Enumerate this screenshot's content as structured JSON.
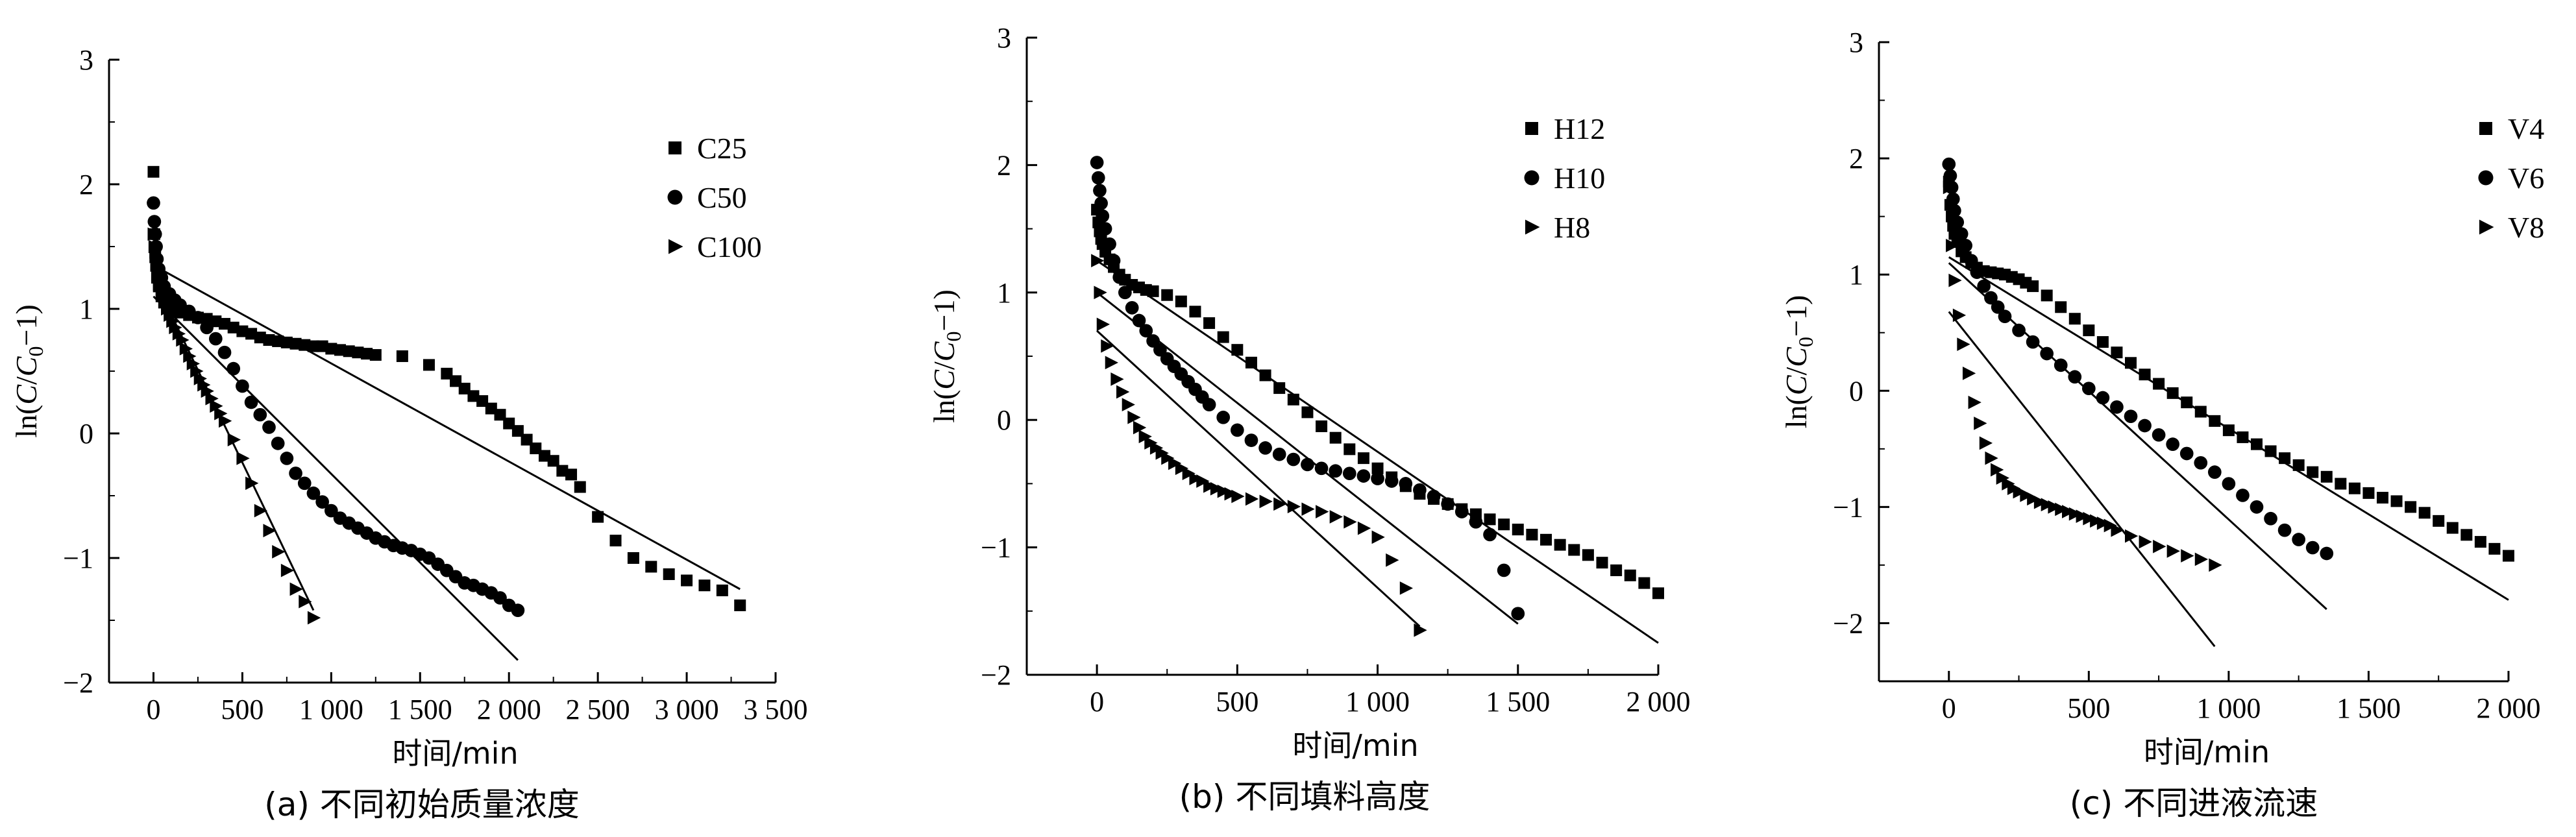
{
  "chart_data": [
    {
      "type": "scatter",
      "panel": "a",
      "caption": "(a) 不同初始质量浓度",
      "xlabel": "时间/min",
      "ylabel": "ln(C/C0−1)",
      "xlim": [
        -250,
        3500
      ],
      "ylim": [
        -2,
        3
      ],
      "xticks": [
        0,
        500,
        1000,
        1500,
        2000,
        2500,
        3000,
        3500
      ],
      "xtick_labels": [
        "0",
        "500",
        "1 000",
        "1 500",
        "2 000",
        "2 500",
        "3 000",
        "3 500"
      ],
      "yticks": [
        -2,
        -1,
        0,
        1,
        2,
        3
      ],
      "ytick_labels": [
        "−2",
        "−1",
        "0",
        "1",
        "2",
        "3"
      ],
      "legend_position": "top-right",
      "series": [
        {
          "name": "C25",
          "marker": "square",
          "x": [
            0,
            5,
            10,
            15,
            20,
            30,
            45,
            60,
            90,
            120,
            150,
            200,
            250,
            300,
            350,
            400,
            450,
            500,
            550,
            600,
            650,
            700,
            750,
            800,
            850,
            900,
            950,
            1000,
            1050,
            1100,
            1150,
            1200,
            1250,
            1400,
            1550,
            1650,
            1700,
            1750,
            1800,
            1850,
            1900,
            1950,
            2000,
            2050,
            2100,
            2150,
            2200,
            2250,
            2300,
            2350,
            2400,
            2500,
            2600,
            2700,
            2800,
            2900,
            3000,
            3100,
            3200,
            3300
          ],
          "y": [
            2.1,
            1.6,
            1.45,
            1.35,
            1.25,
            1.18,
            1.1,
            1.05,
            1.0,
            0.98,
            0.97,
            0.95,
            0.93,
            0.92,
            0.9,
            0.88,
            0.85,
            0.82,
            0.8,
            0.77,
            0.75,
            0.74,
            0.73,
            0.72,
            0.71,
            0.7,
            0.7,
            0.68,
            0.67,
            0.66,
            0.65,
            0.64,
            0.63,
            0.62,
            0.55,
            0.48,
            0.42,
            0.36,
            0.3,
            0.26,
            0.2,
            0.15,
            0.08,
            0.02,
            -0.05,
            -0.12,
            -0.18,
            -0.22,
            -0.3,
            -0.33,
            -0.43,
            -0.67,
            -0.86,
            -1.0,
            -1.07,
            -1.13,
            -1.18,
            -1.22,
            -1.26,
            -1.38
          ]
        },
        {
          "name": "C50",
          "marker": "circle",
          "x": [
            0,
            5,
            10,
            15,
            20,
            30,
            45,
            60,
            90,
            120,
            150,
            200,
            250,
            300,
            350,
            400,
            450,
            500,
            550,
            600,
            650,
            700,
            750,
            800,
            850,
            900,
            950,
            1000,
            1050,
            1100,
            1150,
            1200,
            1250,
            1300,
            1350,
            1400,
            1450,
            1500,
            1550,
            1600,
            1650,
            1700,
            1750,
            1800,
            1850,
            1900,
            1950,
            2000,
            2050
          ],
          "y": [
            1.85,
            1.7,
            1.6,
            1.5,
            1.4,
            1.32,
            1.25,
            1.18,
            1.12,
            1.07,
            1.03,
            0.98,
            0.93,
            0.85,
            0.76,
            0.65,
            0.52,
            0.38,
            0.25,
            0.15,
            0.05,
            -0.08,
            -0.2,
            -0.32,
            -0.4,
            -0.48,
            -0.55,
            -0.62,
            -0.68,
            -0.72,
            -0.76,
            -0.8,
            -0.84,
            -0.87,
            -0.9,
            -0.92,
            -0.94,
            -0.97,
            -1.0,
            -1.05,
            -1.1,
            -1.15,
            -1.2,
            -1.22,
            -1.25,
            -1.28,
            -1.32,
            -1.38,
            -1.42
          ]
        },
        {
          "name": "C100",
          "marker": "triangle",
          "x": [
            0,
            5,
            10,
            15,
            20,
            30,
            45,
            60,
            75,
            90,
            105,
            120,
            140,
            160,
            180,
            200,
            220,
            240,
            260,
            280,
            300,
            325,
            350,
            375,
            400,
            450,
            500,
            550,
            600,
            650,
            700,
            750,
            800,
            850,
            900
          ],
          "y": [
            1.6,
            1.5,
            1.42,
            1.35,
            1.28,
            1.2,
            1.12,
            1.06,
            1.0,
            0.95,
            0.9,
            0.85,
            0.8,
            0.75,
            0.68,
            0.62,
            0.56,
            0.5,
            0.44,
            0.39,
            0.34,
            0.28,
            0.22,
            0.16,
            0.1,
            -0.05,
            -0.2,
            -0.4,
            -0.62,
            -0.78,
            -0.95,
            -1.1,
            -1.25,
            -1.35,
            -1.48
          ]
        }
      ],
      "fit_lines": [
        {
          "x": [
            0,
            3300
          ],
          "y": [
            1.35,
            -1.25
          ]
        },
        {
          "x": [
            0,
            2050
          ],
          "y": [
            1.1,
            -1.82
          ]
        },
        {
          "x": [
            0,
            900
          ],
          "y": [
            1.25,
            -1.42
          ]
        }
      ]
    },
    {
      "type": "scatter",
      "panel": "b",
      "caption": "(b) 不同填料高度",
      "xlabel": "时间/min",
      "ylabel": "ln(C/C0−1)",
      "xlim": [
        -250,
        2000
      ],
      "ylim": [
        -2,
        3
      ],
      "xticks": [
        0,
        500,
        1000,
        1500,
        2000
      ],
      "xtick_labels": [
        "0",
        "500",
        "1 000",
        "1 500",
        "2 000"
      ],
      "yticks": [
        -2,
        -1,
        0,
        1,
        2,
        3
      ],
      "ytick_labels": [
        "−2",
        "−1",
        "0",
        "1",
        "2",
        "3"
      ],
      "legend_position": "top-right",
      "series": [
        {
          "name": "H12",
          "marker": "square",
          "x": [
            0,
            5,
            10,
            15,
            20,
            30,
            45,
            60,
            80,
            100,
            125,
            150,
            175,
            200,
            250,
            300,
            350,
            400,
            450,
            500,
            550,
            600,
            650,
            700,
            750,
            800,
            850,
            900,
            950,
            1000,
            1050,
            1100,
            1150,
            1200,
            1250,
            1300,
            1350,
            1400,
            1450,
            1500,
            1550,
            1600,
            1650,
            1700,
            1750,
            1800,
            1850,
            1900,
            1950,
            2000
          ],
          "y": [
            1.65,
            1.55,
            1.48,
            1.42,
            1.38,
            1.32,
            1.26,
            1.2,
            1.14,
            1.1,
            1.06,
            1.04,
            1.02,
            1.01,
            0.98,
            0.93,
            0.85,
            0.76,
            0.65,
            0.55,
            0.45,
            0.35,
            0.25,
            0.16,
            0.06,
            -0.05,
            -0.14,
            -0.23,
            -0.3,
            -0.38,
            -0.45,
            -0.52,
            -0.58,
            -0.62,
            -0.66,
            -0.7,
            -0.74,
            -0.78,
            -0.82,
            -0.86,
            -0.9,
            -0.94,
            -0.98,
            -1.02,
            -1.06,
            -1.12,
            -1.18,
            -1.22,
            -1.28,
            -1.36
          ]
        },
        {
          "name": "H10",
          "marker": "circle",
          "x": [
            0,
            5,
            10,
            15,
            20,
            30,
            45,
            60,
            80,
            100,
            125,
            150,
            175,
            200,
            225,
            250,
            275,
            300,
            325,
            350,
            375,
            400,
            450,
            500,
            550,
            600,
            650,
            700,
            750,
            800,
            850,
            900,
            950,
            1000,
            1050,
            1100,
            1150,
            1200,
            1250,
            1300,
            1350,
            1400,
            1450,
            1500
          ],
          "y": [
            2.02,
            1.9,
            1.8,
            1.7,
            1.6,
            1.5,
            1.38,
            1.25,
            1.12,
            1.0,
            0.88,
            0.78,
            0.7,
            0.62,
            0.55,
            0.48,
            0.42,
            0.36,
            0.3,
            0.24,
            0.18,
            0.12,
            0.02,
            -0.08,
            -0.16,
            -0.22,
            -0.27,
            -0.31,
            -0.35,
            -0.38,
            -0.4,
            -0.42,
            -0.44,
            -0.46,
            -0.48,
            -0.5,
            -0.55,
            -0.6,
            -0.66,
            -0.72,
            -0.8,
            -0.9,
            -1.18,
            -1.52
          ]
        },
        {
          "name": "H8",
          "marker": "triangle",
          "x": [
            0,
            10,
            20,
            35,
            50,
            70,
            90,
            110,
            130,
            150,
            170,
            190,
            210,
            230,
            250,
            275,
            300,
            325,
            350,
            375,
            400,
            425,
            450,
            475,
            500,
            550,
            600,
            650,
            700,
            750,
            800,
            850,
            900,
            950,
            1000,
            1050,
            1100,
            1150
          ],
          "y": [
            1.25,
            1.0,
            0.75,
            0.58,
            0.45,
            0.32,
            0.22,
            0.12,
            0.02,
            -0.06,
            -0.13,
            -0.18,
            -0.22,
            -0.26,
            -0.3,
            -0.34,
            -0.38,
            -0.42,
            -0.46,
            -0.48,
            -0.52,
            -0.54,
            -0.56,
            -0.58,
            -0.6,
            -0.62,
            -0.64,
            -0.66,
            -0.68,
            -0.7,
            -0.72,
            -0.76,
            -0.8,
            -0.85,
            -0.92,
            -1.1,
            -1.32,
            -1.65
          ]
        }
      ],
      "fit_lines": [
        {
          "x": [
            0,
            2000
          ],
          "y": [
            1.25,
            -1.75
          ]
        },
        {
          "x": [
            0,
            1500
          ],
          "y": [
            1.0,
            -1.6
          ]
        },
        {
          "x": [
            0,
            1150
          ],
          "y": [
            0.7,
            -1.62
          ]
        }
      ]
    },
    {
      "type": "scatter",
      "panel": "c",
      "caption": "(c) 不同进液流速",
      "xlabel": "时间/min",
      "ylabel": "ln(C/C0−1)",
      "xlim": [
        -250,
        2000
      ],
      "ylim": [
        -2.5,
        3
      ],
      "xticks": [
        0,
        500,
        1000,
        1500,
        2000
      ],
      "xtick_labels": [
        "0",
        "500",
        "1 000",
        "1 500",
        "2 000"
      ],
      "yticks": [
        -2,
        -1,
        0,
        1,
        2,
        3
      ],
      "ytick_labels": [
        "−2",
        "−1",
        "0",
        "1",
        "2",
        "3"
      ],
      "legend_position": "top-right",
      "series": [
        {
          "name": "V4",
          "marker": "square",
          "x": [
            0,
            5,
            10,
            15,
            20,
            30,
            45,
            60,
            80,
            100,
            125,
            150,
            175,
            200,
            225,
            250,
            275,
            300,
            350,
            400,
            450,
            500,
            550,
            600,
            650,
            700,
            750,
            800,
            850,
            900,
            950,
            1000,
            1050,
            1100,
            1150,
            1200,
            1250,
            1300,
            1350,
            1400,
            1450,
            1500,
            1550,
            1600,
            1650,
            1700,
            1750,
            1800,
            1850,
            1900,
            1950,
            2000
          ],
          "y": [
            1.8,
            1.6,
            1.5,
            1.42,
            1.35,
            1.28,
            1.2,
            1.15,
            1.1,
            1.06,
            1.03,
            1.02,
            1.01,
            1.0,
            0.98,
            0.96,
            0.93,
            0.9,
            0.82,
            0.72,
            0.62,
            0.52,
            0.42,
            0.33,
            0.24,
            0.14,
            0.06,
            -0.02,
            -0.1,
            -0.18,
            -0.26,
            -0.34,
            -0.4,
            -0.46,
            -0.52,
            -0.58,
            -0.64,
            -0.7,
            -0.74,
            -0.8,
            -0.84,
            -0.88,
            -0.92,
            -0.95,
            -1.0,
            -1.05,
            -1.12,
            -1.18,
            -1.24,
            -1.3,
            -1.36,
            -1.42
          ]
        },
        {
          "name": "V6",
          "marker": "circle",
          "x": [
            0,
            5,
            10,
            15,
            20,
            30,
            45,
            60,
            80,
            100,
            125,
            150,
            175,
            200,
            250,
            300,
            350,
            400,
            450,
            500,
            550,
            600,
            650,
            700,
            750,
            800,
            850,
            900,
            950,
            1000,
            1050,
            1100,
            1150,
            1200,
            1250,
            1300,
            1350
          ],
          "y": [
            1.95,
            1.85,
            1.75,
            1.65,
            1.55,
            1.45,
            1.35,
            1.25,
            1.12,
            1.02,
            0.9,
            0.8,
            0.72,
            0.64,
            0.52,
            0.42,
            0.32,
            0.22,
            0.12,
            0.02,
            -0.06,
            -0.14,
            -0.22,
            -0.3,
            -0.38,
            -0.46,
            -0.54,
            -0.62,
            -0.7,
            -0.8,
            -0.9,
            -1.0,
            -1.1,
            -1.2,
            -1.28,
            -1.35,
            -1.4
          ]
        },
        {
          "name": "V8",
          "marker": "triangle",
          "x": [
            0,
            10,
            20,
            35,
            50,
            70,
            90,
            110,
            130,
            150,
            170,
            190,
            210,
            230,
            250,
            275,
            300,
            325,
            350,
            375,
            400,
            425,
            450,
            475,
            500,
            525,
            550,
            575,
            600,
            650,
            700,
            750,
            800,
            850,
            900,
            950
          ],
          "y": [
            1.75,
            1.25,
            0.95,
            0.65,
            0.4,
            0.15,
            -0.1,
            -0.28,
            -0.45,
            -0.58,
            -0.68,
            -0.75,
            -0.8,
            -0.84,
            -0.87,
            -0.9,
            -0.93,
            -0.96,
            -0.98,
            -1.0,
            -1.02,
            -1.04,
            -1.06,
            -1.08,
            -1.1,
            -1.12,
            -1.14,
            -1.16,
            -1.2,
            -1.25,
            -1.3,
            -1.34,
            -1.38,
            -1.42,
            -1.45,
            -1.5
          ]
        }
      ],
      "fit_lines": [
        {
          "x": [
            0,
            2000
          ],
          "y": [
            1.15,
            -1.8
          ]
        },
        {
          "x": [
            0,
            1350
          ],
          "y": [
            1.1,
            -1.88
          ]
        },
        {
          "x": [
            0,
            950
          ],
          "y": [
            0.68,
            -2.2
          ]
        }
      ]
    }
  ]
}
